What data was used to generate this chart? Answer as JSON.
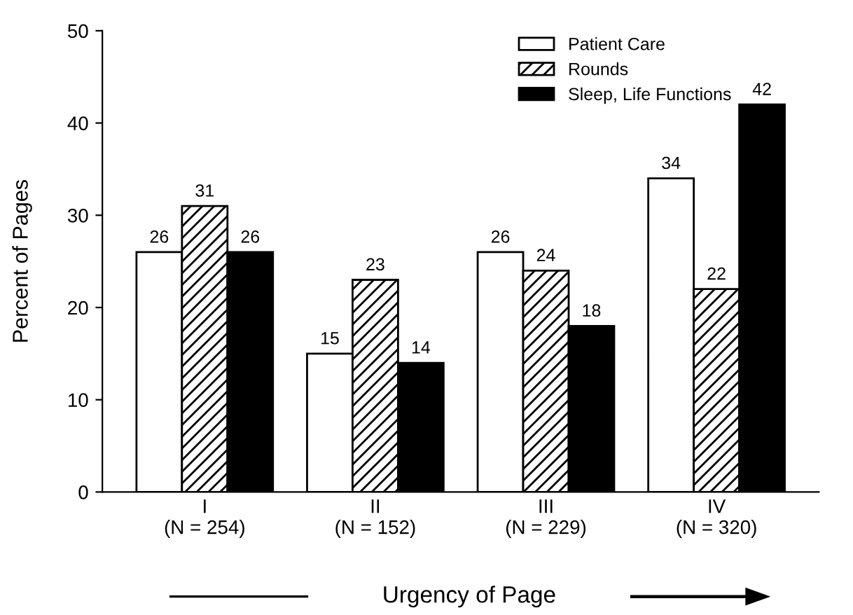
{
  "chart_data": {
    "type": "bar",
    "xlabel": "Urgency of Page",
    "ylabel": "Percent of Pages",
    "categories": [
      "I\n(N = 254)",
      "II\n(N = 152)",
      "III\n(N = 229)",
      "IV\n(N = 320)"
    ],
    "series": [
      {
        "name": "Patient Care",
        "color": "#ffffff",
        "values": [
          26,
          15,
          26,
          34
        ]
      },
      {
        "name": "Rounds",
        "color": "#000000",
        "values": [
          31,
          23,
          24,
          22
        ]
      },
      {
        "name": "Sleep, Life Functions",
        "color": "#000000",
        "values": [
          26,
          14,
          18,
          42
        ]
      }
    ],
    "ylim": [
      0,
      50
    ],
    "yticks": [
      0,
      10,
      20,
      30,
      40,
      50
    ],
    "data_labels": true,
    "legend": "top right",
    "grid": false
  }
}
